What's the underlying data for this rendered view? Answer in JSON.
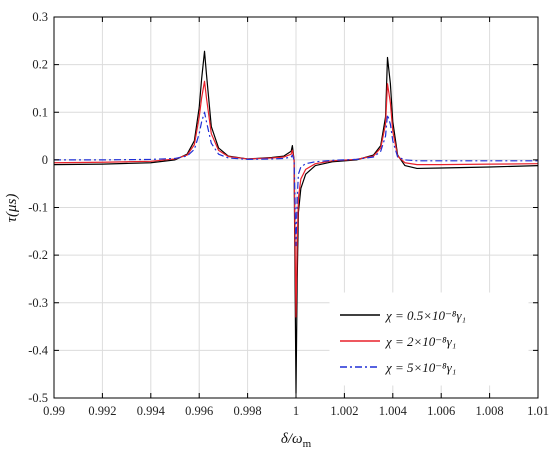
{
  "chart_data": {
    "type": "line",
    "xlabel": "δ/ω_m",
    "ylabel": "τ(μs)",
    "xlim": [
      0.99,
      1.01
    ],
    "ylim": [
      -0.5,
      0.3
    ],
    "xticks": [
      0.99,
      0.992,
      0.994,
      0.996,
      0.998,
      1,
      1.002,
      1.004,
      1.006,
      1.008,
      1.01
    ],
    "xtick_labels": [
      "0.99",
      "0.992",
      "0.994",
      "0.996",
      "0.998",
      "1",
      "1.002",
      "1.004",
      "1.006",
      "1.008",
      "1.01"
    ],
    "yticks": [
      0.3,
      0.2,
      0.1,
      0,
      -0.1,
      -0.2,
      -0.3,
      -0.4,
      -0.5
    ],
    "ytick_labels": [
      "0.3",
      "0.2",
      "0.1",
      "0",
      "-0.1",
      "-0.2",
      "-0.3",
      "-0.4",
      "-0.5"
    ],
    "grid": true,
    "legend_position": "bottom-right",
    "series": [
      {
        "name": "χ = 0.5×10⁻⁸γ₁",
        "color": "#000000",
        "dash": "solid",
        "x": [
          0.99,
          0.992,
          0.994,
          0.995,
          0.9955,
          0.9958,
          0.996,
          0.9961,
          0.99622,
          0.9963,
          0.9965,
          0.9968,
          0.9972,
          0.998,
          0.999,
          0.9995,
          0.9998,
          0.99985,
          0.99992,
          1.0,
          1.00005,
          1.0001,
          1.0002,
          1.0004,
          1.0008,
          1.0015,
          1.0025,
          1.0032,
          1.0035,
          1.0037,
          1.00378,
          1.0039,
          1.004,
          1.0042,
          1.0045,
          1.005,
          1.006,
          1.008,
          1.01
        ],
        "y": [
          -0.01,
          -0.009,
          -0.006,
          0.0,
          0.012,
          0.04,
          0.11,
          0.17,
          0.228,
          0.18,
          0.07,
          0.025,
          0.008,
          0.002,
          0.005,
          0.008,
          0.018,
          0.03,
          0.0,
          -0.49,
          -0.25,
          -0.11,
          -0.06,
          -0.03,
          -0.012,
          -0.004,
          0.0,
          0.01,
          0.03,
          0.09,
          0.215,
          0.16,
          0.08,
          0.01,
          -0.012,
          -0.018,
          -0.017,
          -0.015,
          -0.012
        ]
      },
      {
        "name": "χ = 2×10⁻⁸γ₁",
        "color": "#e8202a",
        "dash": "solid",
        "x": [
          0.99,
          0.992,
          0.994,
          0.995,
          0.9955,
          0.9958,
          0.996,
          0.9961,
          0.99622,
          0.9963,
          0.9965,
          0.9968,
          0.9972,
          0.998,
          0.999,
          0.9995,
          0.9998,
          0.99985,
          0.99992,
          1.0,
          1.00005,
          1.0001,
          1.0002,
          1.0004,
          1.0008,
          1.0015,
          1.0025,
          1.0032,
          1.0035,
          1.0037,
          1.00378,
          1.0039,
          1.004,
          1.0042,
          1.0045,
          1.005,
          1.006,
          1.008,
          1.01
        ],
        "y": [
          -0.006,
          -0.005,
          -0.003,
          0.002,
          0.01,
          0.032,
          0.09,
          0.13,
          0.165,
          0.13,
          0.055,
          0.02,
          0.007,
          0.002,
          0.004,
          0.006,
          0.012,
          0.02,
          0.0,
          -0.33,
          -0.17,
          -0.08,
          -0.04,
          -0.02,
          -0.008,
          -0.002,
          0.001,
          0.008,
          0.025,
          0.075,
          0.16,
          0.12,
          0.06,
          0.008,
          -0.006,
          -0.01,
          -0.01,
          -0.009,
          -0.008
        ]
      },
      {
        "name": "χ = 5×10⁻⁸γ₁",
        "color": "#1f2fd6",
        "dash": "dashdot",
        "x": [
          0.99,
          0.992,
          0.994,
          0.995,
          0.9955,
          0.9958,
          0.996,
          0.9961,
          0.99622,
          0.9963,
          0.9965,
          0.9968,
          0.9972,
          0.998,
          0.999,
          0.9995,
          0.9998,
          0.99985,
          0.99992,
          1.0,
          1.00005,
          1.0001,
          1.0002,
          1.0004,
          1.0008,
          1.0015,
          1.0025,
          1.0032,
          1.0035,
          1.0037,
          1.00378,
          1.0039,
          1.004,
          1.0042,
          1.0045,
          1.005,
          1.006,
          1.008,
          1.01
        ],
        "y": [
          0.0,
          0.0,
          0.001,
          0.003,
          0.008,
          0.022,
          0.055,
          0.08,
          0.1,
          0.08,
          0.035,
          0.012,
          0.004,
          0.001,
          0.002,
          0.003,
          0.006,
          0.01,
          0.0,
          -0.18,
          -0.08,
          -0.03,
          -0.015,
          -0.008,
          -0.004,
          -0.001,
          0.001,
          0.006,
          0.018,
          0.05,
          0.095,
          0.075,
          0.04,
          0.006,
          0.0,
          -0.002,
          -0.002,
          -0.002,
          -0.002
        ]
      }
    ]
  }
}
